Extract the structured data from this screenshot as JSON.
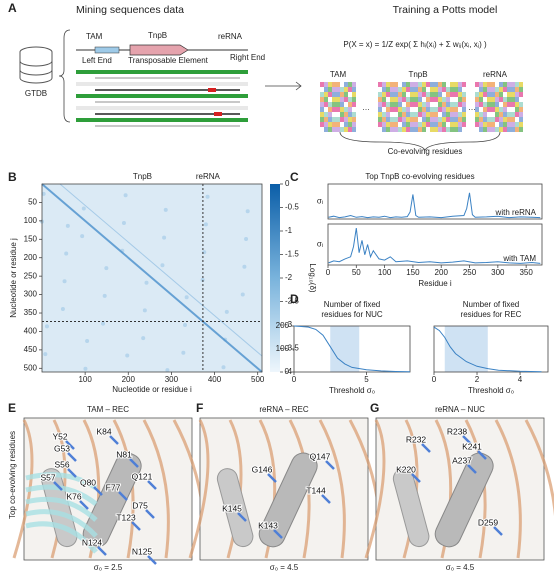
{
  "panel_a": {
    "label": "A",
    "title_left": "Mining sequences data",
    "title_right": "Training a Potts model",
    "database": "GTDB",
    "genes": [
      "TAM",
      "TnpB",
      "reRNA"
    ],
    "regions": [
      "Left End",
      "Transposable Element",
      "Right End"
    ],
    "equation": "P(X = x) = 1/Z exp( Σ hᵢ(xᵢ) + Σ wᵢⱼ(xᵢ, xⱼ) )",
    "msa_labels": [
      "TAM",
      "TnpB",
      "reRNA"
    ],
    "note": "Co-evolving residues"
  },
  "panel_b": {
    "label": "B",
    "type": "heatmap",
    "region_labels": [
      "TnpB",
      "reRNA"
    ],
    "x_label": "Nucleotide or residue i",
    "y_label": "Nucleotide or residue j",
    "xlim": [
      0,
      510
    ],
    "ylim": [
      0,
      510
    ],
    "xticks": [
      100,
      200,
      300,
      400,
      500
    ],
    "yticks": [
      50,
      100,
      150,
      200,
      250,
      300,
      350,
      400,
      450,
      500
    ],
    "boundary": 373,
    "colorbar": {
      "label": "Log₁₀(δ)",
      "lim": [
        -4,
        0
      ],
      "ticks": [
        0,
        -0.5,
        -1,
        -1.5,
        -2,
        -2.5,
        -3,
        -3.5,
        -4
      ]
    }
  },
  "panel_c": {
    "label": "C",
    "type": "line",
    "title": "Top TnpB co-evolving residues",
    "x_label": "Residue i",
    "xlim": [
      0,
      378
    ],
    "xticks": [
      0,
      50,
      100,
      150,
      200,
      250,
      300,
      350
    ],
    "ylim": [
      0,
      1
    ],
    "series": [
      {
        "name": "with reRNA",
        "y_label": "σᵢ",
        "color": "#3b82c4",
        "x": [
          1,
          10,
          20,
          30,
          40,
          50,
          60,
          70,
          80,
          90,
          100,
          110,
          120,
          130,
          140,
          145,
          150,
          155,
          160,
          180,
          200,
          220,
          240,
          245,
          250,
          255,
          260,
          280,
          300,
          320,
          340,
          360,
          375
        ],
        "values": [
          0.05,
          0.08,
          0.04,
          0.06,
          0.1,
          0.05,
          0.07,
          0.04,
          0.06,
          0.05,
          0.08,
          0.04,
          0.06,
          0.05,
          0.07,
          0.2,
          0.7,
          0.1,
          0.05,
          0.06,
          0.04,
          0.08,
          0.1,
          0.3,
          0.75,
          0.12,
          0.05,
          0.06,
          0.08,
          0.04,
          0.06,
          0.05,
          0.04
        ]
      },
      {
        "name": "with TAM",
        "y_label": "σᵢ",
        "color": "#3b82c4",
        "x": [
          1,
          10,
          20,
          30,
          40,
          45,
          50,
          55,
          60,
          65,
          70,
          75,
          80,
          90,
          100,
          110,
          120,
          140,
          160,
          180,
          200,
          220,
          240,
          260,
          280,
          300,
          320,
          340,
          360,
          375
        ],
        "values": [
          0.05,
          0.1,
          0.08,
          0.15,
          0.2,
          0.45,
          0.9,
          0.3,
          0.6,
          0.25,
          0.5,
          0.2,
          0.35,
          0.15,
          0.12,
          0.2,
          0.08,
          0.1,
          0.06,
          0.08,
          0.05,
          0.07,
          0.1,
          0.05,
          0.06,
          0.08,
          0.05,
          0.04,
          0.06,
          0.04
        ]
      }
    ]
  },
  "panel_d": {
    "label": "D",
    "type": "line",
    "x_label": "Threshold σ₀",
    "ylim": [
      0,
      200
    ],
    "yticks": [
      0,
      100,
      200
    ],
    "plots": [
      {
        "title": [
          "Number of fixed",
          "residues for NUC"
        ],
        "xlim": [
          0,
          8
        ],
        "xticks": [
          0,
          5
        ],
        "shade": [
          2.5,
          4.5
        ],
        "color": "#3b82c4",
        "x": [
          0,
          0.5,
          1,
          1.5,
          2,
          2.5,
          3,
          3.5,
          4,
          5,
          6,
          7,
          8
        ],
        "values": [
          200,
          198,
          195,
          185,
          160,
          110,
          60,
          35,
          20,
          10,
          5,
          2,
          1
        ]
      },
      {
        "title": [
          "Number of fixed",
          "residues for REC"
        ],
        "xlim": [
          0,
          5.3
        ],
        "xticks": [
          0,
          2,
          4
        ],
        "shade": [
          0.5,
          2.5
        ],
        "color": "#3b82c4",
        "x": [
          0,
          0.25,
          0.5,
          0.75,
          1,
          1.5,
          2,
          2.5,
          3,
          4,
          5
        ],
        "values": [
          195,
          180,
          150,
          110,
          80,
          45,
          25,
          15,
          8,
          3,
          1
        ]
      }
    ]
  },
  "panel_e": {
    "label": "E",
    "title": "TAM – REC",
    "threshold": "σ₀ = 2.5",
    "side_label": "Top co-evolving residues",
    "residues": [
      "Y52",
      "K84",
      "G53",
      "N81",
      "S56",
      "S57",
      "Q121",
      "Q80",
      "K76",
      "F77",
      "D75",
      "T123",
      "N124",
      "N125"
    ]
  },
  "panel_f": {
    "label": "F",
    "title": "reRNA – REC",
    "threshold": "σ₀ = 4.5",
    "residues": [
      "G146",
      "Q147",
      "T144",
      "K145",
      "K143"
    ]
  },
  "panel_g": {
    "label": "G",
    "title": "reRNA – NUC",
    "threshold": "σ₀ = 4.5",
    "residues": [
      "R238",
      "R232",
      "K241",
      "A237",
      "K220",
      "D259"
    ]
  }
}
